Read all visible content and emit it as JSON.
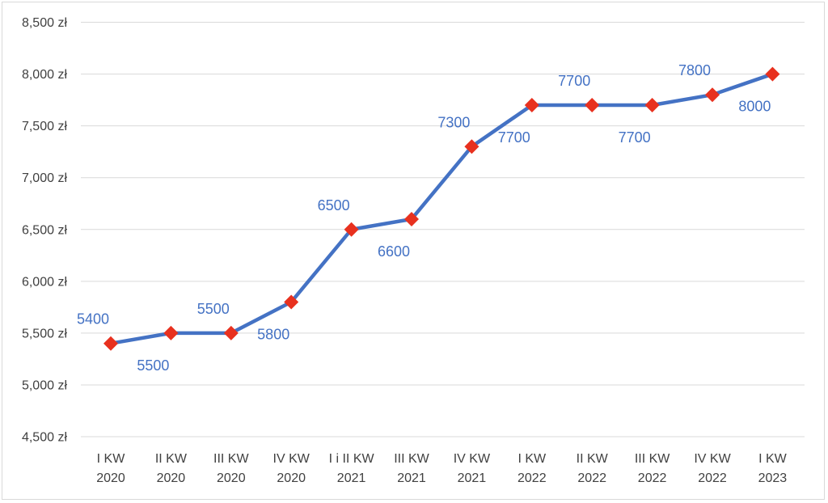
{
  "chart_data": {
    "type": "line",
    "title": "",
    "xlabel": "",
    "ylabel": "",
    "categories": [
      [
        "I KW",
        "2020"
      ],
      [
        "II KW",
        "2020"
      ],
      [
        "III KW",
        "2020"
      ],
      [
        "IV KW",
        "2020"
      ],
      [
        "I i II KW",
        "2021"
      ],
      [
        "III KW",
        "2021"
      ],
      [
        "IV KW",
        "2021"
      ],
      [
        "I KW",
        "2022"
      ],
      [
        "II KW",
        "2022"
      ],
      [
        "III KW",
        "2022"
      ],
      [
        "IV KW",
        "2022"
      ],
      [
        "I KW",
        "2023"
      ]
    ],
    "series": [
      {
        "values": [
          5400,
          5500,
          5500,
          5800,
          6500,
          6600,
          7300,
          7700,
          7700,
          7700,
          7800,
          8000
        ],
        "data_labels": [
          "5400",
          "5500",
          "5500",
          "5800",
          "6500",
          "6600",
          "7300",
          "7700",
          "7700",
          "7700",
          "7800",
          "8000"
        ],
        "label_positions": [
          "above",
          "below",
          "above",
          "below",
          "above",
          "below",
          "above",
          "below",
          "above",
          "below",
          "above",
          "below"
        ],
        "line_color": "#4472c4",
        "marker_color": "#e8311f",
        "marker": "diamond"
      }
    ],
    "yticks": [
      4500,
      5000,
      5500,
      6000,
      6500,
      7000,
      7500,
      8000,
      8500
    ],
    "ytick_labels": [
      "4,500 zł",
      "5,000 zł",
      "5,500 zł",
      "6,000 zł",
      "6,500 zł",
      "7,000 zł",
      "7,500 zł",
      "8,000 zł",
      "8,500 zł"
    ],
    "ylim": [
      4500,
      8500
    ],
    "grid": true,
    "legend": "none",
    "gridline_color": "#d9d9d9",
    "label_color": "#4472c4"
  }
}
